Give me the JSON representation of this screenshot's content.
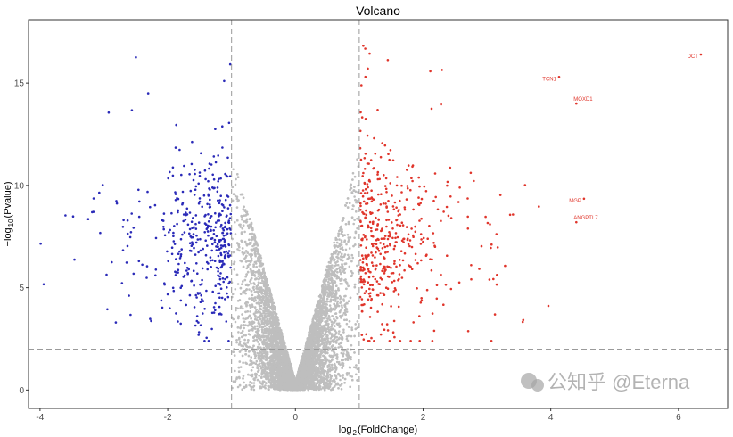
{
  "chart_data": {
    "type": "scatter",
    "title": "Volcano",
    "xlabel_main": "log",
    "xlabel_sub": "2",
    "xlabel_rest": "(FoldChange)",
    "ylabel_pre": "−log",
    "ylabel_sub": "10",
    "ylabel_rest": "(Pvalue)",
    "xlim": [
      -4.18,
      6.77
    ],
    "ylim": [
      -0.9,
      18.1
    ],
    "xticks": [
      "-4",
      "-2",
      "0",
      "2",
      "4",
      "6"
    ],
    "xtick_values": [
      -4,
      -2,
      0,
      2,
      4,
      6
    ],
    "yticks": [
      "0",
      "5",
      "10",
      "15"
    ],
    "ytick_values": [
      0,
      5,
      10,
      15
    ],
    "thresholds": {
      "log2fc": [
        -1,
        1
      ],
      "neg_log10_p": 2
    },
    "series": [
      {
        "name": "down",
        "color": "#2a2ab8",
        "approx_count": 430
      },
      {
        "name": "not significant",
        "color": "#bebebe",
        "approx_count": 9000
      },
      {
        "name": "up",
        "color": "#e0352b",
        "approx_count": 470
      }
    ],
    "labeled_genes": [
      {
        "label": "DCT",
        "x": 6.35,
        "y": 16.4
      },
      {
        "label": "TCN1",
        "x": 4.13,
        "y": 15.3
      },
      {
        "label": "MOXD1",
        "x": 4.4,
        "y": 14.0
      },
      {
        "label": "MGP",
        "x": 4.52,
        "y": 9.35
      },
      {
        "label": "ANGPTL7",
        "x": 4.4,
        "y": 8.2
      }
    ],
    "grid": false,
    "legend": "none"
  },
  "watermark": "公知乎 @Eterna"
}
